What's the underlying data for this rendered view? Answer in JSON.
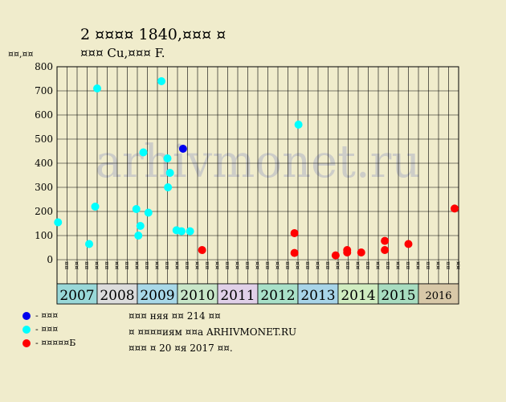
{
  "header": {
    "title_line1": "2 ¤¤¤¤ 1840,¤¤¤ ¤",
    "title_line2": "¤¤¤ Cu,¤¤¤ F."
  },
  "colors": {
    "background": "#f0eccc",
    "plot_background": "#f0eccc",
    "grid": "#000000",
    "watermark": "#c8c8c8",
    "series_blue": "#0000ee",
    "series_cyan": "#00ffff",
    "series_red": "#ff0000"
  },
  "watermark": "arhivmonet.ru",
  "legend": [
    {
      "label": "- ¤¤¤",
      "color": "#0000ee"
    },
    {
      "label": "- ¤¤¤",
      "color": "#00ffff"
    },
    {
      "label": "- ¤¤¤¤¤Б",
      "color": "#ff0000"
    }
  ],
  "info": {
    "line1": "¤¤¤ няя ¤¤ 214 ¤¤",
    "line2": "¤ ¤¤¤¤иям ¤¤а ARHIVMONET.RU",
    "line3": "¤¤¤ ¤ 20 ¤я 2017 ¤¤."
  },
  "chart_data": {
    "type": "scatter",
    "title": "2 ¤¤¤¤ 1840,¤¤¤ ¤",
    "subtitle": "¤¤¤ Cu,¤¤¤ F.",
    "ylabel": "¤¤,¤¤",
    "ylim": [
      0,
      800
    ],
    "yticks": [
      0,
      100,
      200,
      300,
      400,
      500,
      600,
      700,
      800
    ],
    "grid": true,
    "x_unit": "month-quarters",
    "x_range": [
      0,
      40
    ],
    "month_labels": [
      "¤¤",
      "¤¤",
      "¤¤",
      "¤¤",
      "¤¤",
      "¤¤",
      "¤¤",
      "¤¤",
      "¤¤",
      "¤¤",
      "¤¤",
      "¤¤",
      "¤¤",
      "¤¤",
      "¤¤",
      "¤¤",
      "¤¤",
      "¤¤",
      "¤¤",
      "¤¤",
      "¤¤",
      "¤¤",
      "¤¤",
      "¤¤",
      "¤¤",
      "¤¤",
      "¤¤",
      "¤¤",
      "¤¤",
      "¤¤",
      "¤¤",
      "¤¤",
      "¤¤",
      "¤¤",
      "¤¤",
      "¤¤",
      "¤¤",
      "¤¤",
      "¤¤",
      "¤¤"
    ],
    "years": [
      {
        "label": "2007",
        "start": 0,
        "end": 4,
        "color": "#99d8d8"
      },
      {
        "label": "2008",
        "start": 4,
        "end": 8,
        "color": "#dcdcdc"
      },
      {
        "label": "2009",
        "start": 8,
        "end": 12,
        "color": "#a8d8e8"
      },
      {
        "label": "2010",
        "start": 12,
        "end": 16,
        "color": "#c8e6c8"
      },
      {
        "label": "2011",
        "start": 16,
        "end": 20,
        "color": "#e0d0e8"
      },
      {
        "label": "2012",
        "start": 20,
        "end": 24,
        "color": "#a8e0c8"
      },
      {
        "label": "2013",
        "start": 24,
        "end": 28,
        "color": "#a8d4e8"
      },
      {
        "label": "2014",
        "start": 28,
        "end": 32,
        "color": "#d0ecc0"
      },
      {
        "label": "2015",
        "start": 32,
        "end": 36,
        "color": "#a8dcc0"
      },
      {
        "label": "2016",
        "start": 36,
        "end": 40,
        "color": "#d8c8a8",
        "small": true
      }
    ],
    "series": [
      {
        "color": "#0000ee",
        "points": [
          {
            "x": 12.55,
            "y": 460
          }
        ]
      },
      {
        "color": "#00ffff",
        "points": [
          {
            "x": 0.1,
            "y": 155
          },
          {
            "x": 3.2,
            "y": 65
          },
          {
            "x": 3.8,
            "y": 220
          },
          {
            "x": 4.0,
            "y": 710
          },
          {
            "x": 7.9,
            "y": 210
          },
          {
            "x": 8.1,
            "y": 100
          },
          {
            "x": 8.3,
            "y": 140
          },
          {
            "x": 8.6,
            "y": 445
          },
          {
            "x": 9.1,
            "y": 195
          },
          {
            "x": 10.4,
            "y": 740
          },
          {
            "x": 11.0,
            "y": 420
          },
          {
            "x": 11.05,
            "y": 300
          },
          {
            "x": 11.25,
            "y": 360
          },
          {
            "x": 11.9,
            "y": 122
          },
          {
            "x": 12.4,
            "y": 118
          },
          {
            "x": 13.25,
            "y": 118
          },
          {
            "x": 24.05,
            "y": 560
          }
        ]
      },
      {
        "color": "#ff0000",
        "points": [
          {
            "x": 14.45,
            "y": 40
          },
          {
            "x": 23.65,
            "y": 110
          },
          {
            "x": 23.65,
            "y": 28
          },
          {
            "x": 27.75,
            "y": 18
          },
          {
            "x": 28.9,
            "y": 40
          },
          {
            "x": 28.9,
            "y": 30
          },
          {
            "x": 30.3,
            "y": 30
          },
          {
            "x": 32.65,
            "y": 78
          },
          {
            "x": 32.65,
            "y": 40
          },
          {
            "x": 35.0,
            "y": 65
          },
          {
            "x": 39.6,
            "y": 212
          }
        ]
      }
    ]
  }
}
